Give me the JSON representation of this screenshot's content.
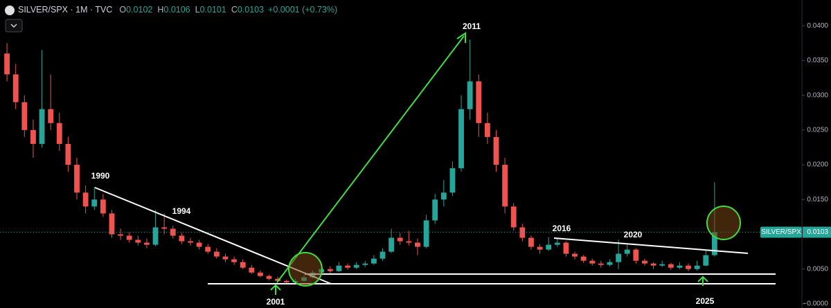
{
  "header": {
    "title": "SILVER/SPX · 1M · TVC",
    "ohlc": [
      {
        "label": "O",
        "value": 0.0102
      },
      {
        "label": "H",
        "value": 0.0106
      },
      {
        "label": "L",
        "value": 0.0101
      },
      {
        "label": "C",
        "value": 0.0103
      }
    ],
    "change": "+0.0001 (+0.73%)"
  },
  "chart_data": {
    "type": "candlestick",
    "up_color": "#26a69a",
    "down_color": "#ef5350",
    "grid": false,
    "axis_side": "right",
    "xlim": [
      1984.6,
      2030.5
    ],
    "ylim": [
      -0.0006,
      0.0437
    ],
    "yticks": [
      {
        "value": 0,
        "label": "−0.0000"
      },
      {
        "value": 0.005,
        "label": "0.0050"
      },
      {
        "value": 0.01,
        "label": "0.0100"
      },
      {
        "value": 0.015,
        "label": "0.0150"
      },
      {
        "value": 0.02,
        "label": "0.0200"
      },
      {
        "value": 0.025,
        "label": "0.0250"
      },
      {
        "value": 0.03,
        "label": "0.0300"
      },
      {
        "value": 0.035,
        "label": "0.0350"
      },
      {
        "value": 0.04,
        "label": "0.0400"
      }
    ],
    "last_price": {
      "name": "SILVER/SPX",
      "value": 0.0103
    },
    "annotations": [
      "1990",
      "1994",
      "2001",
      "2011",
      "2016",
      "2020",
      "2025"
    ],
    "x": [
      1985,
      1985.5,
      1986,
      1986.5,
      1987,
      1987.5,
      1988,
      1988.5,
      1989,
      1989.5,
      1990,
      1990.5,
      1991,
      1991.5,
      1992,
      1992.5,
      1993,
      1993.5,
      1994,
      1994.5,
      1995,
      1995.5,
      1996,
      1996.5,
      1997,
      1997.5,
      1998,
      1998.5,
      1999,
      1999.5,
      2000,
      2000.5,
      2001,
      2001.5,
      2002,
      2002.5,
      2003,
      2003.5,
      2004,
      2004.5,
      2005,
      2005.5,
      2006,
      2006.5,
      2007,
      2007.5,
      2008,
      2008.5,
      2009,
      2009.5,
      2010,
      2010.5,
      2011,
      2011.5,
      2012,
      2012.5,
      2013,
      2013.5,
      2014,
      2014.5,
      2015,
      2015.5,
      2016,
      2016.5,
      2017,
      2017.5,
      2018,
      2018.5,
      2019,
      2019.5,
      2020,
      2020.5,
      2021,
      2021.5,
      2022,
      2022.5,
      2023,
      2023.5,
      2024,
      2024.5,
      2025,
      2025.5
    ],
    "ohlc": [
      [
        0.036,
        0.0375,
        0.032,
        0.033
      ],
      [
        0.033,
        0.0345,
        0.028,
        0.029
      ],
      [
        0.029,
        0.03,
        0.024,
        0.025
      ],
      [
        0.025,
        0.0265,
        0.021,
        0.023
      ],
      [
        0.023,
        0.0365,
        0.0225,
        0.028
      ],
      [
        0.028,
        0.033,
        0.025,
        0.026
      ],
      [
        0.026,
        0.0275,
        0.022,
        0.023
      ],
      [
        0.023,
        0.024,
        0.019,
        0.02
      ],
      [
        0.02,
        0.021,
        0.015,
        0.016
      ],
      [
        0.016,
        0.017,
        0.013,
        0.014
      ],
      [
        0.014,
        0.0168,
        0.0135,
        0.015
      ],
      [
        0.015,
        0.0158,
        0.0125,
        0.013
      ],
      [
        0.013,
        0.0135,
        0.0095,
        0.01
      ],
      [
        0.01,
        0.0108,
        0.0092,
        0.0098
      ],
      [
        0.0098,
        0.0103,
        0.0088,
        0.0092
      ],
      [
        0.0092,
        0.0098,
        0.0084,
        0.0088
      ],
      [
        0.0088,
        0.0094,
        0.008,
        0.0085
      ],
      [
        0.0085,
        0.0135,
        0.0083,
        0.011
      ],
      [
        0.011,
        0.013,
        0.01,
        0.0108
      ],
      [
        0.0108,
        0.0112,
        0.0094,
        0.0098
      ],
      [
        0.0098,
        0.0102,
        0.0086,
        0.009
      ],
      [
        0.009,
        0.0095,
        0.0084,
        0.0088
      ],
      [
        0.0088,
        0.0092,
        0.0078,
        0.0082
      ],
      [
        0.0082,
        0.0086,
        0.0072,
        0.0075
      ],
      [
        0.0075,
        0.008,
        0.0065,
        0.0068
      ],
      [
        0.0068,
        0.0072,
        0.006,
        0.0064
      ],
      [
        0.0064,
        0.0068,
        0.0056,
        0.006
      ],
      [
        0.006,
        0.0064,
        0.005,
        0.0052
      ],
      [
        0.0052,
        0.0056,
        0.0043,
        0.0045
      ],
      [
        0.0045,
        0.0048,
        0.0038,
        0.004
      ],
      [
        0.004,
        0.0042,
        0.0034,
        0.0036
      ],
      [
        0.0036,
        0.0039,
        0.0032,
        0.0033
      ],
      [
        0.0033,
        0.0035,
        0.0029,
        0.0031
      ],
      [
        0.0031,
        0.0036,
        0.003,
        0.0033
      ],
      [
        0.0033,
        0.0041,
        0.0032,
        0.0038
      ],
      [
        0.0038,
        0.0048,
        0.0037,
        0.0045
      ],
      [
        0.0045,
        0.0056,
        0.0043,
        0.005
      ],
      [
        0.005,
        0.0054,
        0.0044,
        0.0047
      ],
      [
        0.0047,
        0.006,
        0.0046,
        0.0055
      ],
      [
        0.0055,
        0.0058,
        0.0049,
        0.0052
      ],
      [
        0.0052,
        0.006,
        0.005,
        0.0056
      ],
      [
        0.0056,
        0.0062,
        0.0053,
        0.0058
      ],
      [
        0.0058,
        0.007,
        0.0056,
        0.0065
      ],
      [
        0.0065,
        0.008,
        0.0062,
        0.0075
      ],
      [
        0.0075,
        0.0108,
        0.0073,
        0.0095
      ],
      [
        0.0095,
        0.0102,
        0.0085,
        0.009
      ],
      [
        0.009,
        0.0105,
        0.0084,
        0.0088
      ],
      [
        0.0088,
        0.0094,
        0.007,
        0.0082
      ],
      [
        0.0082,
        0.0128,
        0.008,
        0.012
      ],
      [
        0.012,
        0.0158,
        0.0115,
        0.015
      ],
      [
        0.015,
        0.0178,
        0.014,
        0.016
      ],
      [
        0.016,
        0.0205,
        0.0155,
        0.0195
      ],
      [
        0.0195,
        0.03,
        0.019,
        0.028
      ],
      [
        0.028,
        0.038,
        0.0265,
        0.032
      ],
      [
        0.032,
        0.033,
        0.024,
        0.026
      ],
      [
        0.026,
        0.0275,
        0.023,
        0.024
      ],
      [
        0.024,
        0.025,
        0.019,
        0.02
      ],
      [
        0.02,
        0.021,
        0.013,
        0.014
      ],
      [
        0.014,
        0.0145,
        0.0105,
        0.011
      ],
      [
        0.011,
        0.0115,
        0.009,
        0.0095
      ],
      [
        0.0095,
        0.0098,
        0.0078,
        0.0082
      ],
      [
        0.0082,
        0.0086,
        0.0072,
        0.0078
      ],
      [
        0.0078,
        0.0096,
        0.0076,
        0.0085
      ],
      [
        0.0085,
        0.0094,
        0.0082,
        0.0088
      ],
      [
        0.0088,
        0.009,
        0.0068,
        0.0072
      ],
      [
        0.0072,
        0.0075,
        0.0064,
        0.0068
      ],
      [
        0.0068,
        0.007,
        0.0059,
        0.0062
      ],
      [
        0.0062,
        0.0065,
        0.0055,
        0.0058
      ],
      [
        0.0058,
        0.0062,
        0.0052,
        0.0056
      ],
      [
        0.0056,
        0.0064,
        0.0054,
        0.006
      ],
      [
        0.006,
        0.0092,
        0.005,
        0.0072
      ],
      [
        0.0072,
        0.0085,
        0.0068,
        0.0078
      ],
      [
        0.0078,
        0.008,
        0.0058,
        0.0062
      ],
      [
        0.0062,
        0.0065,
        0.0055,
        0.0058
      ],
      [
        0.0058,
        0.006,
        0.005,
        0.0055
      ],
      [
        0.0055,
        0.0062,
        0.0053,
        0.0057
      ],
      [
        0.0057,
        0.0059,
        0.0049,
        0.0052
      ],
      [
        0.0052,
        0.006,
        0.005,
        0.0055
      ],
      [
        0.0055,
        0.0058,
        0.0047,
        0.005
      ],
      [
        0.005,
        0.0062,
        0.0048,
        0.0055
      ],
      [
        0.0055,
        0.0078,
        0.0054,
        0.007
      ],
      [
        0.007,
        0.0175,
        0.0068,
        0.0103
      ]
    ]
  }
}
